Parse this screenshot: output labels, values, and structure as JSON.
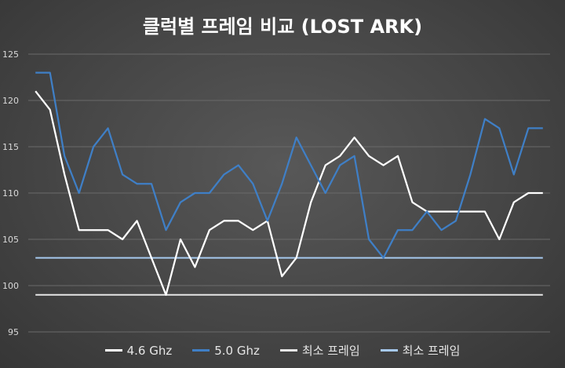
{
  "chart_data": {
    "type": "line",
    "title": "클럭별 프레임 비교 (LOST ARK)",
    "ylim": [
      95,
      125
    ],
    "yticks": [
      95,
      100,
      105,
      110,
      115,
      120,
      125
    ],
    "grid": true,
    "legend": "bottom",
    "x": [
      1,
      2,
      3,
      4,
      5,
      6,
      7,
      8,
      9,
      10,
      11,
      12,
      13,
      14,
      15,
      16,
      17,
      18,
      19,
      20,
      21,
      22,
      23,
      24,
      25,
      26,
      27,
      28,
      29,
      30,
      31,
      32,
      33,
      34,
      35,
      36
    ],
    "series": [
      {
        "name": "4.6 Ghz",
        "color": "#ffffff",
        "values": [
          121,
          119,
          112,
          106,
          106,
          106,
          105,
          107,
          103,
          99,
          105,
          102,
          106,
          107,
          107,
          106,
          107,
          101,
          103,
          109,
          113,
          114,
          116,
          114,
          113,
          114,
          109,
          108,
          108,
          108,
          108,
          108,
          105,
          109,
          110,
          110
        ]
      },
      {
        "name": "5.0 Ghz",
        "color": "#3f7fc6",
        "values": [
          123,
          123,
          114,
          110,
          115,
          117,
          112,
          111,
          111,
          106,
          109,
          110,
          110,
          112,
          113,
          111,
          107,
          111,
          116,
          113,
          110,
          113,
          114,
          105,
          103,
          106,
          106,
          108,
          106,
          107,
          112,
          118,
          117,
          112,
          117,
          117
        ]
      },
      {
        "name": "최소 프레임",
        "color": "#e6e6e6",
        "values": [
          99,
          99,
          99,
          99,
          99,
          99,
          99,
          99,
          99,
          99,
          99,
          99,
          99,
          99,
          99,
          99,
          99,
          99,
          99,
          99,
          99,
          99,
          99,
          99,
          99,
          99,
          99,
          99,
          99,
          99,
          99,
          99,
          99,
          99,
          99,
          99
        ]
      },
      {
        "name": "최소 프레임",
        "color": "#a6c9ee",
        "values": [
          103,
          103,
          103,
          103,
          103,
          103,
          103,
          103,
          103,
          103,
          103,
          103,
          103,
          103,
          103,
          103,
          103,
          103,
          103,
          103,
          103,
          103,
          103,
          103,
          103,
          103,
          103,
          103,
          103,
          103,
          103,
          103,
          103,
          103,
          103,
          103
        ]
      }
    ]
  }
}
